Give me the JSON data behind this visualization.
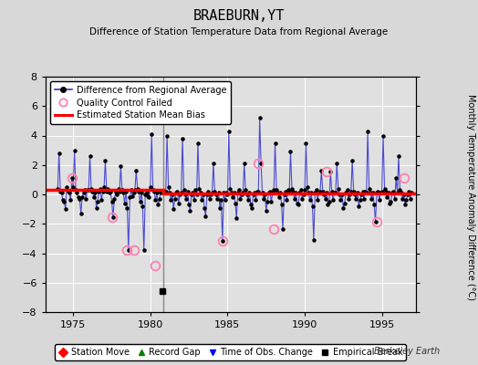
{
  "title": "BRAEBURN,YT",
  "subtitle": "Difference of Station Temperature Data from Regional Average",
  "ylabel_right": "Monthly Temperature Anomaly Difference (°C)",
  "xlim": [
    1973.2,
    1997.2
  ],
  "ylim": [
    -8,
    8
  ],
  "yticks": [
    -8,
    -6,
    -4,
    -2,
    0,
    2,
    4,
    6,
    8
  ],
  "xticks": [
    1975,
    1980,
    1985,
    1990,
    1995
  ],
  "background_color": "#d8d8d8",
  "plot_bg_color": "#e0e0e0",
  "grid_color": "#ffffff",
  "watermark": "Berkeley Earth",
  "empirical_break_x": 1980.75,
  "empirical_break_y": -6.6,
  "vertical_line_x": 1980.83,
  "bias_segments": [
    {
      "x": [
        1973.2,
        1980.83
      ],
      "y": [
        0.3,
        0.3
      ]
    },
    {
      "x": [
        1980.83,
        1997.2
      ],
      "y": [
        0.05,
        0.05
      ]
    }
  ],
  "qc_points": [
    [
      1974.92,
      1.1
    ],
    [
      1977.5,
      -1.55
    ],
    [
      1978.5,
      -3.8
    ],
    [
      1978.92,
      -3.8
    ],
    [
      1980.33,
      -4.85
    ],
    [
      1984.67,
      -3.15
    ],
    [
      1987.0,
      2.1
    ],
    [
      1988.0,
      -2.35
    ],
    [
      1991.42,
      1.55
    ],
    [
      1994.67,
      -1.85
    ],
    [
      1996.42,
      1.1
    ]
  ],
  "pre_data_x": [
    1974.0,
    1974.08,
    1974.17,
    1974.25,
    1974.33,
    1974.42,
    1974.5,
    1974.58,
    1974.67,
    1974.75,
    1974.83,
    1974.92,
    1975.0,
    1975.08,
    1975.17,
    1975.25,
    1975.33,
    1975.42,
    1975.5,
    1975.58,
    1975.67,
    1975.75,
    1975.83,
    1975.92,
    1976.0,
    1976.08,
    1976.17,
    1976.25,
    1976.33,
    1976.42,
    1976.5,
    1976.58,
    1976.67,
    1976.75,
    1976.83,
    1976.92,
    1977.0,
    1977.08,
    1977.17,
    1977.25,
    1977.33,
    1977.42,
    1977.5,
    1977.58,
    1977.67,
    1977.75,
    1977.83,
    1977.92,
    1978.0,
    1978.08,
    1978.17,
    1978.25,
    1978.33,
    1978.42,
    1978.5,
    1978.58,
    1978.67,
    1978.75,
    1978.83,
    1978.92,
    1979.0,
    1979.08,
    1979.17,
    1979.25,
    1979.33,
    1979.42,
    1979.5,
    1979.58,
    1979.67,
    1979.75,
    1979.83,
    1979.92,
    1980.0,
    1980.08,
    1980.17,
    1980.25,
    1980.33,
    1980.42,
    1980.5,
    1980.58,
    1980.67
  ],
  "pre_data_y": [
    0.4,
    2.8,
    0.2,
    0.1,
    -0.4,
    -0.5,
    -1.0,
    0.5,
    0.2,
    0.1,
    -0.4,
    1.1,
    0.5,
    3.0,
    0.3,
    0.1,
    -0.2,
    -0.3,
    -1.3,
    -0.2,
    0.1,
    0.3,
    -0.3,
    0.3,
    0.3,
    2.6,
    0.4,
    0.2,
    -0.2,
    0.1,
    -0.9,
    -0.5,
    0.2,
    0.4,
    -0.4,
    0.2,
    0.5,
    2.3,
    0.2,
    0.4,
    0.1,
    0.2,
    -0.5,
    -1.55,
    -0.3,
    0.2,
    0.0,
    0.4,
    0.2,
    1.9,
    0.3,
    0.1,
    -0.6,
    0.2,
    -0.9,
    -3.8,
    -0.2,
    0.3,
    -0.1,
    0.1,
    0.3,
    1.6,
    0.4,
    0.2,
    -0.5,
    0.1,
    -0.8,
    -3.8,
    0.0,
    0.1,
    -0.1,
    -0.2,
    0.5,
    4.1,
    0.3,
    0.2,
    -0.4,
    0.1,
    -0.7,
    -0.3,
    0.1
  ],
  "post_data_x": [
    1981.0,
    1981.08,
    1981.17,
    1981.25,
    1981.33,
    1981.42,
    1981.5,
    1981.58,
    1981.67,
    1981.75,
    1981.83,
    1981.92,
    1982.0,
    1982.08,
    1982.17,
    1982.25,
    1982.33,
    1982.42,
    1982.5,
    1982.58,
    1982.67,
    1982.75,
    1982.83,
    1982.92,
    1983.0,
    1983.08,
    1983.17,
    1983.25,
    1983.33,
    1983.42,
    1983.5,
    1983.58,
    1983.67,
    1983.75,
    1983.83,
    1983.92,
    1984.0,
    1984.08,
    1984.17,
    1984.25,
    1984.33,
    1984.42,
    1984.5,
    1984.58,
    1984.67,
    1984.75,
    1984.83,
    1984.92,
    1985.0,
    1985.08,
    1985.17,
    1985.25,
    1985.33,
    1985.42,
    1985.5,
    1985.58,
    1985.67,
    1985.75,
    1985.83,
    1985.92,
    1986.0,
    1986.08,
    1986.17,
    1986.25,
    1986.33,
    1986.42,
    1986.5,
    1986.58,
    1986.67,
    1986.75,
    1986.83,
    1986.92,
    1987.0,
    1987.08,
    1987.17,
    1987.25,
    1987.33,
    1987.42,
    1987.5,
    1987.58,
    1987.67,
    1987.75,
    1987.83,
    1987.92,
    1988.0,
    1988.08,
    1988.17,
    1988.25,
    1988.33,
    1988.42,
    1988.5,
    1988.58,
    1988.67,
    1988.75,
    1988.83,
    1988.92,
    1989.0,
    1989.08,
    1989.17,
    1989.25,
    1989.33,
    1989.42,
    1989.5,
    1989.58,
    1989.67,
    1989.75,
    1989.83,
    1989.92,
    1990.0,
    1990.08,
    1990.17,
    1990.25,
    1990.33,
    1990.42,
    1990.5,
    1990.58,
    1990.67,
    1990.75,
    1990.83,
    1990.92,
    1991.0,
    1991.08,
    1991.17,
    1991.25,
    1991.33,
    1991.42,
    1991.5,
    1991.58,
    1991.67,
    1991.75,
    1991.83,
    1991.92,
    1992.0,
    1992.08,
    1992.17,
    1992.25,
    1992.33,
    1992.42,
    1992.5,
    1992.58,
    1992.67,
    1992.75,
    1992.83,
    1992.92,
    1993.0,
    1993.08,
    1993.17,
    1993.25,
    1993.33,
    1993.42,
    1993.5,
    1993.58,
    1993.67,
    1993.75,
    1993.83,
    1993.92,
    1994.0,
    1994.08,
    1994.17,
    1994.25,
    1994.33,
    1994.42,
    1994.5,
    1994.58,
    1994.67,
    1994.75,
    1994.83,
    1994.92,
    1995.0,
    1995.08,
    1995.17,
    1995.25,
    1995.33,
    1995.42,
    1995.5,
    1995.58,
    1995.67,
    1995.75,
    1995.83,
    1995.92,
    1996.0,
    1996.08,
    1996.17,
    1996.25,
    1996.33,
    1996.42,
    1996.5,
    1996.58,
    1996.67,
    1996.75,
    1996.83,
    1996.92
  ],
  "post_data_y": [
    0.2,
    4.0,
    0.5,
    0.1,
    -0.4,
    0.0,
    -1.0,
    -0.3,
    0.1,
    0.2,
    -0.6,
    0.0,
    0.1,
    3.8,
    0.3,
    0.0,
    -0.3,
    0.2,
    -0.7,
    -1.1,
    0.0,
    0.1,
    -0.4,
    0.3,
    0.0,
    3.5,
    0.4,
    0.1,
    -0.4,
    0.0,
    -0.9,
    -1.5,
    0.0,
    0.2,
    -0.3,
    0.0,
    0.1,
    2.1,
    0.2,
    0.0,
    -0.3,
    0.1,
    -0.9,
    -0.4,
    -3.15,
    0.1,
    -0.4,
    0.1,
    0.0,
    4.3,
    0.4,
    0.1,
    -0.2,
    0.1,
    -0.6,
    -1.6,
    0.1,
    0.3,
    -0.3,
    0.0,
    0.1,
    2.1,
    0.3,
    0.0,
    -0.4,
    0.1,
    -0.7,
    -0.9,
    0.0,
    0.1,
    -0.4,
    0.2,
    0.2,
    5.2,
    2.1,
    0.1,
    -0.3,
    0.0,
    -1.1,
    -0.5,
    0.1,
    0.2,
    -0.5,
    0.1,
    0.3,
    3.5,
    0.3,
    0.1,
    -0.2,
    0.1,
    -0.7,
    -2.35,
    0.0,
    0.2,
    -0.4,
    0.3,
    0.2,
    2.9,
    0.4,
    0.2,
    -0.3,
    0.1,
    -0.6,
    -0.7,
    0.1,
    0.3,
    -0.3,
    0.0,
    0.3,
    3.5,
    0.5,
    0.1,
    -0.4,
    0.1,
    -0.8,
    -3.1,
    0.1,
    0.3,
    -0.4,
    0.1,
    0.2,
    1.6,
    0.2,
    0.0,
    -0.3,
    0.1,
    -0.7,
    -0.5,
    1.55,
    0.2,
    -0.4,
    0.1,
    0.1,
    2.1,
    0.4,
    0.0,
    -0.4,
    0.0,
    -0.9,
    -0.6,
    0.1,
    0.3,
    -0.3,
    0.0,
    0.2,
    2.3,
    0.2,
    0.0,
    -0.3,
    0.1,
    -0.8,
    -0.4,
    0.0,
    0.2,
    -0.3,
    0.2,
    0.1,
    4.3,
    0.4,
    0.1,
    -0.3,
    0.1,
    -0.7,
    -1.85,
    0.1,
    0.2,
    -0.4,
    0.1,
    0.2,
    4.0,
    0.4,
    0.2,
    -0.2,
    0.1,
    -0.6,
    -0.5,
    0.1,
    0.2,
    -0.3,
    1.1,
    0.1,
    2.6,
    0.3,
    0.1,
    -0.3,
    0.0,
    -0.7,
    -0.4,
    0.0,
    0.2,
    -0.3,
    0.1
  ],
  "line_color": "#3030d0",
  "dot_color": "#000000",
  "bias_color": "#ff0000",
  "qc_color": "#ff80b0",
  "vline_color": "#888888"
}
